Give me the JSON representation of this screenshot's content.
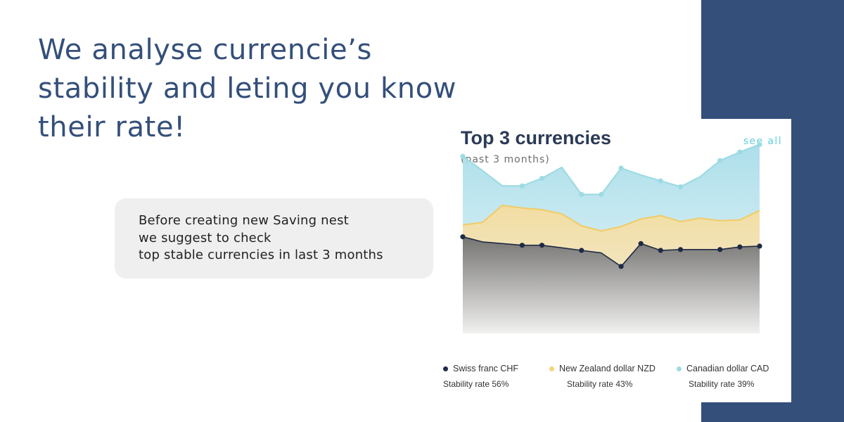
{
  "headline": {
    "line1": "We analyse currencie’s",
    "line2": "stability and leting you know",
    "line3": "their rate!"
  },
  "bubble": {
    "line1": "Before creating new Saving nest",
    "line2": "we suggest to check",
    "line3": "top stable currencies in last 3 months"
  },
  "card": {
    "see_all": "see all"
  },
  "colors": {
    "brand_navy": "#344f7a",
    "chf": "#1f2a44",
    "nzd": "#f3d27e",
    "cad": "#9ddbe3",
    "link": "#5fd0df"
  },
  "chart_data": {
    "type": "area",
    "title": "Top 3 currencies",
    "subtitle": "(past 3 months)",
    "x": [
      0,
      1,
      2,
      3,
      4,
      5,
      6,
      7,
      8,
      9,
      10,
      11,
      12,
      13,
      14,
      15
    ],
    "y_range": [
      0,
      220
    ],
    "series": [
      {
        "name": "Canadian dollar CAD",
        "stability_label": "Stability rate",
        "stability_value": "39%",
        "color": "#9ddbe3",
        "values": [
          209,
          192,
          174,
          174,
          183,
          196,
          164,
          164,
          195,
          187,
          180,
          173,
          185,
          204,
          214,
          223
        ],
        "markers": [
          0,
          3,
          4,
          6,
          7,
          8,
          10,
          11,
          13,
          14,
          15
        ]
      },
      {
        "name": "New Zealand dollar NZD",
        "stability_label": "Stability rate",
        "stability_value": "43%",
        "color": "#f3d27e",
        "values": [
          128,
          131,
          151,
          148,
          146,
          141,
          127,
          121,
          126,
          135,
          139,
          132,
          136,
          133,
          134,
          145
        ]
      },
      {
        "name": "Swiss franc CHF",
        "stability_label": "Stability rate",
        "stability_value": "56%",
        "color": "#1f2a44",
        "values": [
          114,
          108,
          106,
          104,
          104,
          101,
          98,
          95,
          79,
          106,
          98,
          99,
          99,
          99,
          102,
          103
        ],
        "markers": [
          0,
          3,
          4,
          6,
          8,
          9,
          10,
          11,
          13,
          14,
          15
        ]
      }
    ]
  }
}
